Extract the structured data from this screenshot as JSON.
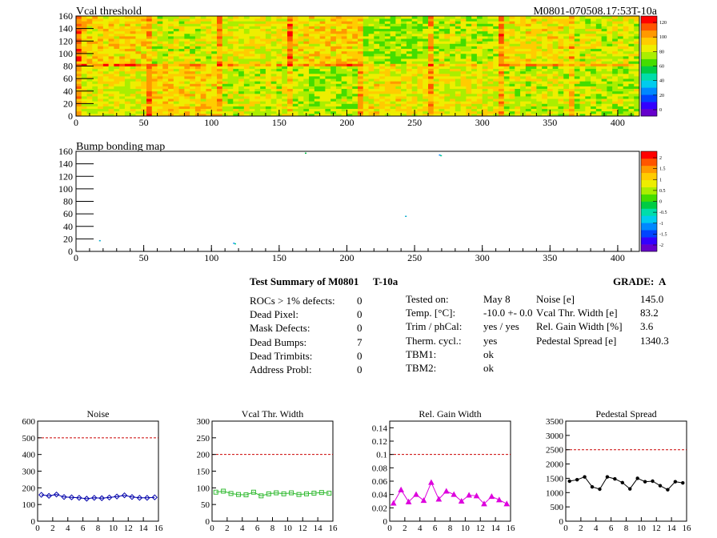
{
  "top_map": {
    "title": "Vcal threshold",
    "module_label": "M0801-070508.17:53T-10a",
    "palette_ticks": [
      "120",
      "100",
      "80",
      "60",
      "40",
      "20",
      "0"
    ]
  },
  "bump_map": {
    "title": "Bump bonding map",
    "palette_ticks": [
      "2",
      "1.5",
      "1",
      "0.5",
      "0",
      "-0.5",
      "-1",
      "-1.5",
      "-2"
    ]
  },
  "colors": {
    "noise": "#0000aa",
    "vcal_width": "#33bb33",
    "gain_width": "#dd00dd",
    "pedestal": "#000000",
    "threshold_line": "#cc0000"
  },
  "summary": {
    "title": "Test Summary of M0801",
    "temp_label": "T-10a",
    "grade": "GRADE:  A",
    "left_labels": [
      "ROCs > 1% defects:",
      "Dead Pixel:",
      "Mask Defects:",
      "Dead Bumps:",
      "Dead Trimbits:",
      "Address Probl:"
    ],
    "left_values": [
      "0",
      "0",
      "0",
      "7",
      "0",
      "0"
    ],
    "mid_labels": [
      "Tested on:",
      "Temp. [°C]:",
      "Trim / phCal:",
      "Therm. cycl.:",
      "TBM1:",
      "TBM2:"
    ],
    "mid_values": [
      "May 8",
      "-10.0 +- 0.0",
      "yes / yes",
      "yes",
      "ok",
      "ok"
    ],
    "right_labels": [
      "Noise [e]",
      "Vcal Thr. Width [e]",
      "Rel. Gain Width [%]",
      "Pedestal Spread [e]"
    ],
    "right_values": [
      "145.0",
      "83.2",
      "3.6",
      "1340.3"
    ]
  },
  "chart_data": [
    {
      "type": "heatmap",
      "title": "Vcal threshold",
      "xlim": [
        0,
        416
      ],
      "ylim": [
        0,
        160
      ],
      "x_ticks": [
        "0",
        "50",
        "100",
        "150",
        "200",
        "250",
        "300",
        "350",
        "400"
      ],
      "y_ticks": [
        "0",
        "20",
        "40",
        "60",
        "80",
        "100",
        "120",
        "140",
        "160"
      ],
      "z_range": [
        0,
        130
      ],
      "roc_mean_threshold_upper_row": [
        95,
        85,
        88,
        95,
        78,
        82,
        90,
        85
      ],
      "roc_mean_threshold_lower_row": [
        88,
        95,
        85,
        80,
        90,
        88,
        85,
        82
      ]
    },
    {
      "type": "heatmap",
      "title": "Bump bonding map",
      "xlim": [
        0,
        416
      ],
      "ylim": [
        0,
        160
      ],
      "x_ticks": [
        "0",
        "50",
        "100",
        "150",
        "200",
        "250",
        "300",
        "350",
        "400"
      ],
      "y_ticks": [
        "0",
        "20",
        "40",
        "60",
        "80",
        "100",
        "120",
        "140",
        "160"
      ],
      "z_range": [
        -2,
        2
      ],
      "points": [
        [
          17,
          18
        ],
        [
          116,
          14
        ],
        [
          117,
          13
        ],
        [
          169,
          158
        ],
        [
          243,
          57
        ],
        [
          268,
          155
        ],
        [
          269,
          154
        ]
      ]
    },
    {
      "type": "line",
      "title": "Noise",
      "xlim": [
        0,
        16
      ],
      "ylim": [
        0,
        600
      ],
      "x_ticks": [
        "0",
        "2",
        "4",
        "6",
        "8",
        "10",
        "12",
        "14",
        "16"
      ],
      "y_ticks": [
        "0",
        "100",
        "200",
        "300",
        "400",
        "500",
        "600"
      ],
      "threshold": 500,
      "x": [
        0.5,
        1.5,
        2.5,
        3.5,
        4.5,
        5.5,
        6.5,
        7.5,
        8.5,
        9.5,
        10.5,
        11.5,
        12.5,
        13.5,
        14.5,
        15.5
      ],
      "values": [
        158,
        152,
        160,
        145,
        143,
        140,
        135,
        140,
        138,
        142,
        148,
        155,
        145,
        140,
        140,
        143
      ]
    },
    {
      "type": "line",
      "title": "Vcal Thr. Width",
      "xlim": [
        0,
        16
      ],
      "ylim": [
        0,
        300
      ],
      "x_ticks": [
        "0",
        "2",
        "4",
        "6",
        "8",
        "10",
        "12",
        "14",
        "16"
      ],
      "y_ticks": [
        "0",
        "50",
        "100",
        "150",
        "200",
        "250",
        "300"
      ],
      "threshold": 200,
      "x": [
        0.5,
        1.5,
        2.5,
        3.5,
        4.5,
        5.5,
        6.5,
        7.5,
        8.5,
        9.5,
        10.5,
        11.5,
        12.5,
        13.5,
        14.5,
        15.5
      ],
      "values": [
        87,
        90,
        83,
        80,
        79,
        87,
        76,
        82,
        85,
        82,
        85,
        80,
        82,
        84,
        86,
        84
      ]
    },
    {
      "type": "line",
      "title": "Rel. Gain Width",
      "xlim": [
        0,
        16
      ],
      "ylim": [
        0,
        0.15
      ],
      "x_ticks": [
        "0",
        "2",
        "4",
        "6",
        "8",
        "10",
        "12",
        "14",
        "16"
      ],
      "y_ticks": [
        "0",
        "0.02",
        "0.04",
        "0.06",
        "0.08",
        "0.1",
        "0.12",
        "0.14"
      ],
      "threshold": 0.1,
      "x": [
        0.5,
        1.5,
        2.5,
        3.5,
        4.5,
        5.5,
        6.5,
        7.5,
        8.5,
        9.5,
        10.5,
        11.5,
        12.5,
        13.5,
        14.5,
        15.5
      ],
      "values": [
        0.027,
        0.047,
        0.029,
        0.04,
        0.031,
        0.058,
        0.033,
        0.045,
        0.04,
        0.03,
        0.039,
        0.038,
        0.026,
        0.037,
        0.032,
        0.026
      ]
    },
    {
      "type": "line",
      "title": "Pedestal Spread",
      "xlim": [
        0,
        16
      ],
      "ylim": [
        0,
        3500
      ],
      "x_ticks": [
        "0",
        "2",
        "4",
        "6",
        "8",
        "10",
        "12",
        "14",
        "16"
      ],
      "y_ticks": [
        "0",
        "500",
        "1000",
        "1500",
        "2000",
        "2500",
        "3000",
        "3500"
      ],
      "threshold": 2500,
      "x": [
        0.5,
        1.5,
        2.5,
        3.5,
        4.5,
        5.5,
        6.5,
        7.5,
        8.5,
        9.5,
        10.5,
        11.5,
        12.5,
        13.5,
        14.5,
        15.5
      ],
      "values": [
        1400,
        1450,
        1550,
        1200,
        1120,
        1550,
        1480,
        1350,
        1130,
        1500,
        1380,
        1400,
        1240,
        1100,
        1380,
        1340
      ]
    }
  ]
}
